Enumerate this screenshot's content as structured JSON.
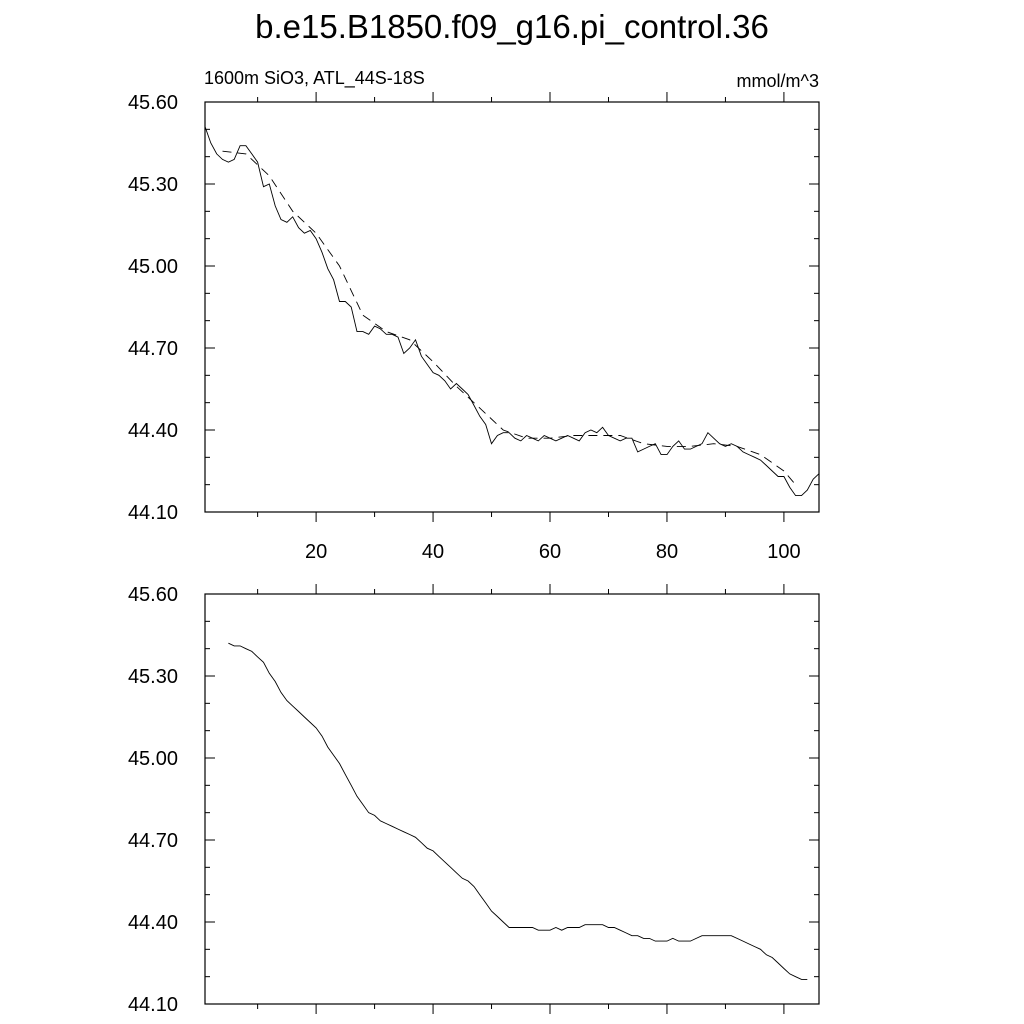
{
  "page": {
    "title": "b.e15.B1850.f09_g16.pi_control.36"
  },
  "chart_data": [
    {
      "type": "line",
      "subtitle_left": "1600m SiO3, ATL_44S-18S",
      "subtitle_right": "mmol/m^3",
      "xlim": [
        1,
        106
      ],
      "ylim": [
        44.1,
        45.6
      ],
      "x_ticks": [
        20,
        40,
        60,
        80,
        100
      ],
      "x_tick_labels": [
        "20",
        "40",
        "60",
        "80",
        "100"
      ],
      "y_ticks": [
        44.1,
        44.4,
        44.7,
        45.0,
        45.3,
        45.6
      ],
      "y_tick_labels": [
        "44.10",
        "44.40",
        "44.70",
        "45.00",
        "45.30",
        "45.60"
      ],
      "series": [
        {
          "style": "solid",
          "x": [
            1,
            2,
            3,
            4,
            5,
            6,
            7,
            8,
            9,
            10,
            11,
            12,
            13,
            14,
            15,
            16,
            17,
            18,
            19,
            20,
            21,
            22,
            23,
            24,
            25,
            26,
            27,
            28,
            29,
            30,
            31,
            32,
            33,
            34,
            35,
            36,
            37,
            38,
            39,
            40,
            41,
            42,
            43,
            44,
            45,
            46,
            47,
            48,
            49,
            50,
            51,
            52,
            53,
            54,
            55,
            56,
            57,
            58,
            59,
            60,
            61,
            62,
            63,
            64,
            65,
            66,
            67,
            68,
            69,
            70,
            71,
            72,
            73,
            74,
            75,
            76,
            77,
            78,
            79,
            80,
            81,
            82,
            83,
            84,
            85,
            86,
            87,
            88,
            89,
            90,
            91,
            92,
            93,
            94,
            95,
            96,
            97,
            98,
            99,
            100,
            101,
            102,
            103,
            104,
            105,
            106
          ],
          "y": [
            45.51,
            45.45,
            45.41,
            45.39,
            45.38,
            45.39,
            45.44,
            45.44,
            45.41,
            45.38,
            45.29,
            45.3,
            45.22,
            45.17,
            45.16,
            45.18,
            45.14,
            45.12,
            45.13,
            45.1,
            45.05,
            44.99,
            44.95,
            44.87,
            44.87,
            44.85,
            44.76,
            44.76,
            44.75,
            44.78,
            44.77,
            44.75,
            44.75,
            44.74,
            44.68,
            44.7,
            44.73,
            44.67,
            44.64,
            44.61,
            44.6,
            44.58,
            44.55,
            44.57,
            44.55,
            44.53,
            44.49,
            44.45,
            44.42,
            44.35,
            44.38,
            44.39,
            44.39,
            44.37,
            44.36,
            44.38,
            44.37,
            44.36,
            44.38,
            44.37,
            44.36,
            44.37,
            44.38,
            44.37,
            44.36,
            44.39,
            44.4,
            44.39,
            44.41,
            44.38,
            44.37,
            44.36,
            44.37,
            44.37,
            44.32,
            44.33,
            44.34,
            44.35,
            44.31,
            44.31,
            44.34,
            44.36,
            44.33,
            44.33,
            44.34,
            44.35,
            44.39,
            44.37,
            44.35,
            44.34,
            44.35,
            44.34,
            44.32,
            44.31,
            44.3,
            44.29,
            44.27,
            44.25,
            44.23,
            44.23,
            44.19,
            44.16,
            44.16,
            44.18,
            44.22,
            44.24
          ]
        },
        {
          "style": "dashed",
          "x": [
            4,
            8,
            12,
            16,
            20,
            24,
            28,
            32,
            36,
            40,
            44,
            48,
            52,
            56,
            60,
            64,
            68,
            72,
            76,
            80,
            84,
            88,
            92,
            96,
            100,
            102
          ],
          "y": [
            45.42,
            45.41,
            45.33,
            45.2,
            45.12,
            45.0,
            44.82,
            44.76,
            44.73,
            44.65,
            44.56,
            44.48,
            44.4,
            44.37,
            44.37,
            44.38,
            44.38,
            44.38,
            44.35,
            44.34,
            44.34,
            44.35,
            44.34,
            44.31,
            44.25,
            44.2
          ]
        }
      ]
    },
    {
      "type": "line",
      "xlim": [
        1,
        106
      ],
      "ylim": [
        44.1,
        45.6
      ],
      "x_ticks": [
        20,
        40,
        60,
        80,
        100
      ],
      "y_ticks": [
        44.1,
        44.4,
        44.7,
        45.0,
        45.3,
        45.6
      ],
      "y_tick_labels": [
        "44.10",
        "44.40",
        "44.70",
        "45.00",
        "45.30",
        "45.60"
      ],
      "series": [
        {
          "style": "solid",
          "x": [
            5,
            6,
            7,
            8,
            9,
            10,
            11,
            12,
            13,
            14,
            15,
            16,
            17,
            18,
            19,
            20,
            21,
            22,
            23,
            24,
            25,
            26,
            27,
            28,
            29,
            30,
            31,
            32,
            33,
            34,
            35,
            36,
            37,
            38,
            39,
            40,
            41,
            42,
            43,
            44,
            45,
            46,
            47,
            48,
            49,
            50,
            51,
            52,
            53,
            54,
            55,
            56,
            57,
            58,
            59,
            60,
            61,
            62,
            63,
            64,
            65,
            66,
            67,
            68,
            69,
            70,
            71,
            72,
            73,
            74,
            75,
            76,
            77,
            78,
            79,
            80,
            81,
            82,
            83,
            84,
            85,
            86,
            87,
            88,
            89,
            90,
            91,
            92,
            93,
            94,
            95,
            96,
            97,
            98,
            99,
            100,
            101,
            102,
            103,
            104
          ],
          "y": [
            45.42,
            45.41,
            45.41,
            45.4,
            45.39,
            45.37,
            45.35,
            45.31,
            45.28,
            45.24,
            45.21,
            45.19,
            45.17,
            45.15,
            45.13,
            45.11,
            45.08,
            45.04,
            45.01,
            44.98,
            44.94,
            44.9,
            44.86,
            44.83,
            44.8,
            44.79,
            44.77,
            44.76,
            44.75,
            44.74,
            44.73,
            44.72,
            44.71,
            44.69,
            44.67,
            44.66,
            44.64,
            44.62,
            44.6,
            44.58,
            44.56,
            44.55,
            44.53,
            44.5,
            44.47,
            44.44,
            44.42,
            44.4,
            44.38,
            44.38,
            44.38,
            44.38,
            44.38,
            44.37,
            44.37,
            44.37,
            44.38,
            44.37,
            44.38,
            44.38,
            44.38,
            44.39,
            44.39,
            44.39,
            44.39,
            44.38,
            44.38,
            44.37,
            44.36,
            44.35,
            44.35,
            44.34,
            44.34,
            44.33,
            44.33,
            44.33,
            44.34,
            44.33,
            44.33,
            44.33,
            44.34,
            44.35,
            44.35,
            44.35,
            44.35,
            44.35,
            44.35,
            44.34,
            44.33,
            44.32,
            44.31,
            44.3,
            44.28,
            44.27,
            44.25,
            44.23,
            44.21,
            44.2,
            44.19,
            44.19
          ]
        }
      ]
    }
  ]
}
